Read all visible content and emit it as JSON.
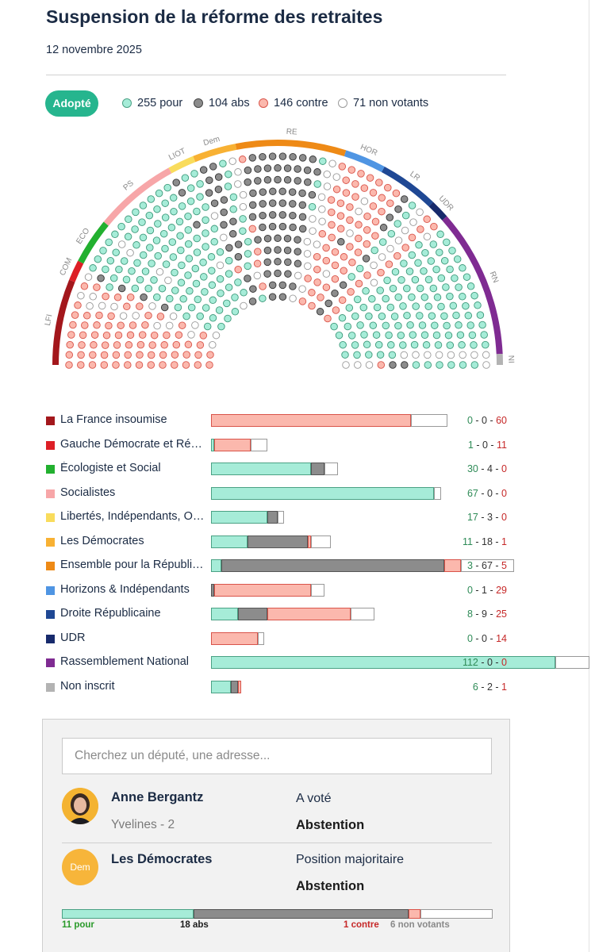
{
  "title": "Suspension de la réforme des retraites",
  "date": "12 novembre 2025",
  "status_badge": "Adopté",
  "legend": {
    "pour": "255 pour",
    "abs": "104 abs",
    "contre": "146 contre",
    "non_votants": "71 non votants"
  },
  "colors": {
    "pour": "#a6ecd8",
    "abs": "#8c8c8c",
    "contre": "#fbb8ad",
    "non_votant": "#ffffff",
    "badge": "#26b58e"
  },
  "hemicycle": {
    "totals": {
      "pour": 255,
      "abs": 104,
      "contre": 146,
      "non_votants": 71
    },
    "arc_labels": [
      "LFI",
      "COM",
      "ECO",
      "PS",
      "LIOT",
      "Dem",
      "RE",
      "HOR",
      "LR",
      "UDR",
      "RN",
      "NI"
    ]
  },
  "groups": [
    {
      "name": "La France insoumise",
      "color": "#a3171c",
      "pour": 0,
      "abs": 0,
      "contre": 60,
      "nv": 11,
      "counts": {
        "pour": "0",
        "abs": "0",
        "contre": "60"
      }
    },
    {
      "name": "Gauche Démocrate et Républicaine",
      "color": "#dd1f26",
      "pour": 1,
      "abs": 0,
      "contre": 11,
      "nv": 5,
      "counts": {
        "pour": "1",
        "abs": "0",
        "contre": "11"
      }
    },
    {
      "name": "Écologiste et Social",
      "color": "#22b02f",
      "pour": 30,
      "abs": 4,
      "contre": 0,
      "nv": 4,
      "counts": {
        "pour": "30",
        "abs": "4",
        "contre": "0"
      }
    },
    {
      "name": "Socialistes",
      "color": "#f7a6a8",
      "pour": 67,
      "abs": 0,
      "contre": 0,
      "nv": 2,
      "counts": {
        "pour": "67",
        "abs": "0",
        "contre": "0"
      }
    },
    {
      "name": "Libertés, Indépendants, Outre-mer et Territoires",
      "color": "#f9dc5c",
      "pour": 17,
      "abs": 3,
      "contre": 0,
      "nv": 2,
      "counts": {
        "pour": "17",
        "abs": "3",
        "contre": "0"
      }
    },
    {
      "name": "Les Démocrates",
      "color": "#f8b133",
      "pour": 11,
      "abs": 18,
      "contre": 1,
      "nv": 6,
      "counts": {
        "pour": "11",
        "abs": "18",
        "contre": "1"
      }
    },
    {
      "name": "Ensemble pour la République",
      "color": "#ee8a16",
      "pour": 3,
      "abs": 67,
      "contre": 5,
      "nv": 16,
      "counts": {
        "pour": "3",
        "abs": "67",
        "contre": "5"
      }
    },
    {
      "name": "Horizons & Indépendants",
      "color": "#4f95e3",
      "pour": 0,
      "abs": 1,
      "contre": 29,
      "nv": 4,
      "counts": {
        "pour": "0",
        "abs": "1",
        "contre": "29"
      }
    },
    {
      "name": "Droite Républicaine",
      "color": "#1f4894",
      "pour": 8,
      "abs": 9,
      "contre": 25,
      "nv": 7,
      "counts": {
        "pour": "8",
        "abs": "9",
        "contre": "25"
      }
    },
    {
      "name": "UDR",
      "color": "#172a6c",
      "pour": 0,
      "abs": 0,
      "contre": 14,
      "nv": 2,
      "counts": {
        "pour": "0",
        "abs": "0",
        "contre": "14"
      }
    },
    {
      "name": "Rassemblement National",
      "color": "#7f2b92",
      "pour": 112,
      "abs": 0,
      "contre": 0,
      "nv": 11,
      "counts": {
        "pour": "112",
        "abs": "0",
        "contre": "0"
      }
    },
    {
      "name": "Non inscrit",
      "color": "#b3b3b3",
      "pour": 6,
      "abs": 2,
      "contre": 1,
      "nv": 0,
      "counts": {
        "pour": "6",
        "abs": "2",
        "contre": "1"
      }
    }
  ],
  "search": {
    "placeholder": "Cherchez un député, une adresse..."
  },
  "deputy": {
    "name": "Anne Bergantz",
    "constituency": "Yvelines - 2",
    "vote_label": "A voté",
    "vote_value": "Abstention"
  },
  "group_card": {
    "avatar_text": "Dem",
    "name": "Les Démocrates",
    "position_label": "Position majoritaire",
    "position_value": "Abstention",
    "summary": {
      "pour": 11,
      "abs": 18,
      "contre": 1,
      "nv": 6
    },
    "labels": {
      "pour": "11 pour",
      "abs": "18 abs",
      "contre": "1 contre",
      "nv": "6 non votants"
    }
  }
}
